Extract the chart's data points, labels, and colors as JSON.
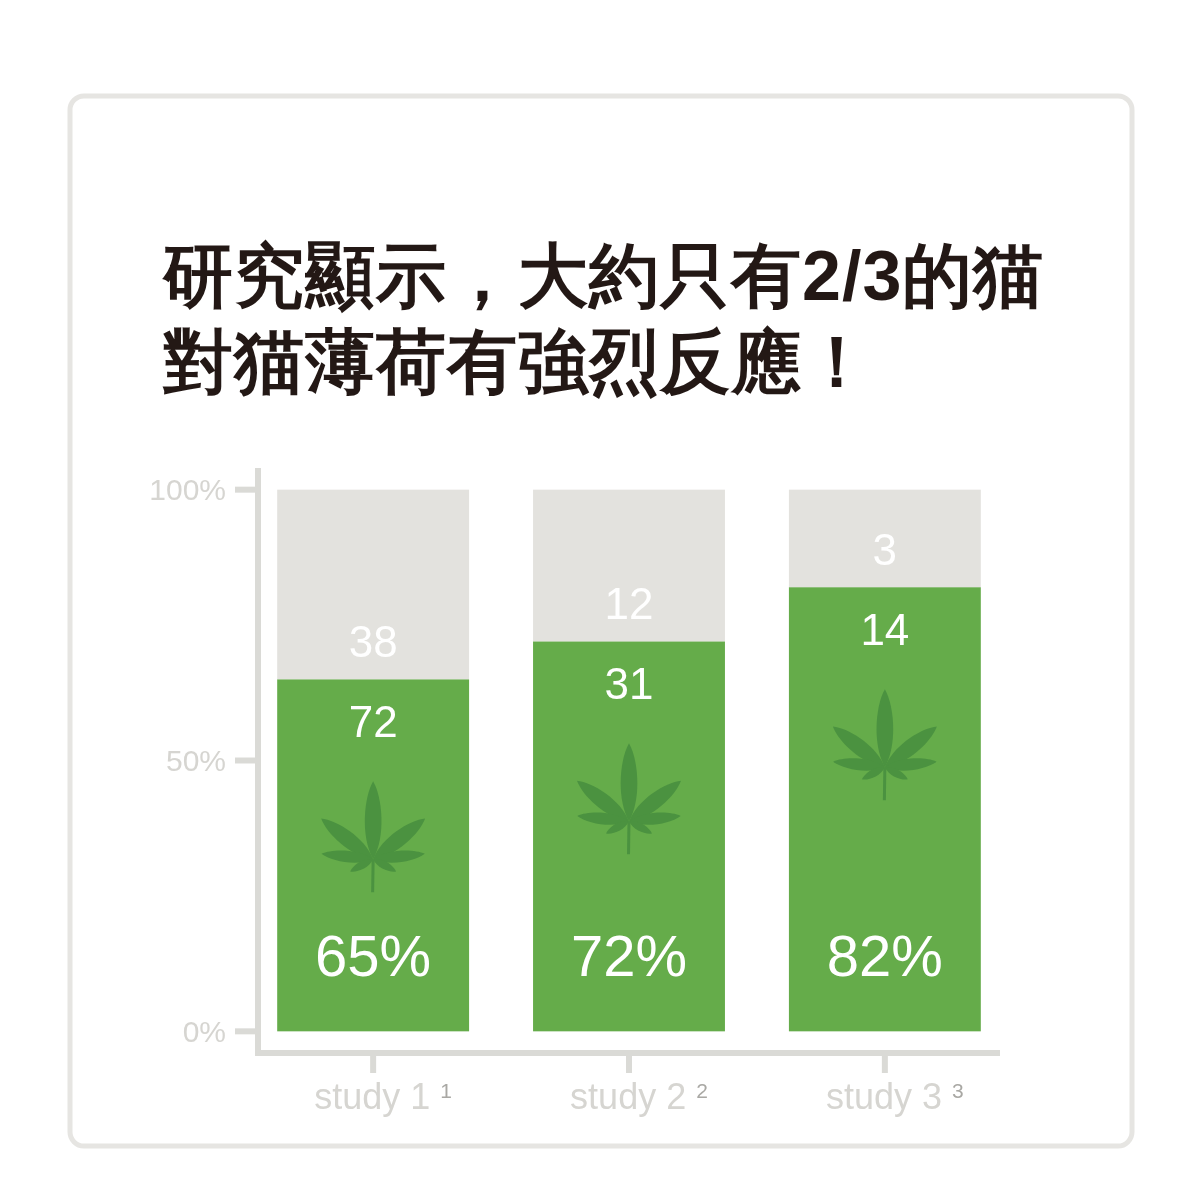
{
  "chart_data": {
    "type": "bar",
    "title": "研究顯示，大約只有2/3的猫對猫薄荷有強烈反應！",
    "categories": [
      "study 1$^{1}$",
      "study 2$^{2}$",
      "study 3$^{3}$"
    ],
    "stacked": true,
    "series": [
      {
        "color": "#65ac4a",
        "values": [
          65,
          72,
          82
        ],
        "value_labels": [
          "65%",
          "72%",
          "82%"
        ]
      },
      {
        "color": "#e3e2de",
        "values": [
          35,
          28,
          18
        ]
      }
    ],
    "ylim": [
      -4,
      104
    ],
    "yticks": [
      {
        "value": 0,
        "label": "0%"
      },
      {
        "value": 50,
        "label": "50%"
      },
      {
        "value": 100,
        "label": "100%"
      }
    ],
    "annotations": [
      "72",
      "31",
      "14",
      "38",
      "12",
      "3"
    ]
  }
}
